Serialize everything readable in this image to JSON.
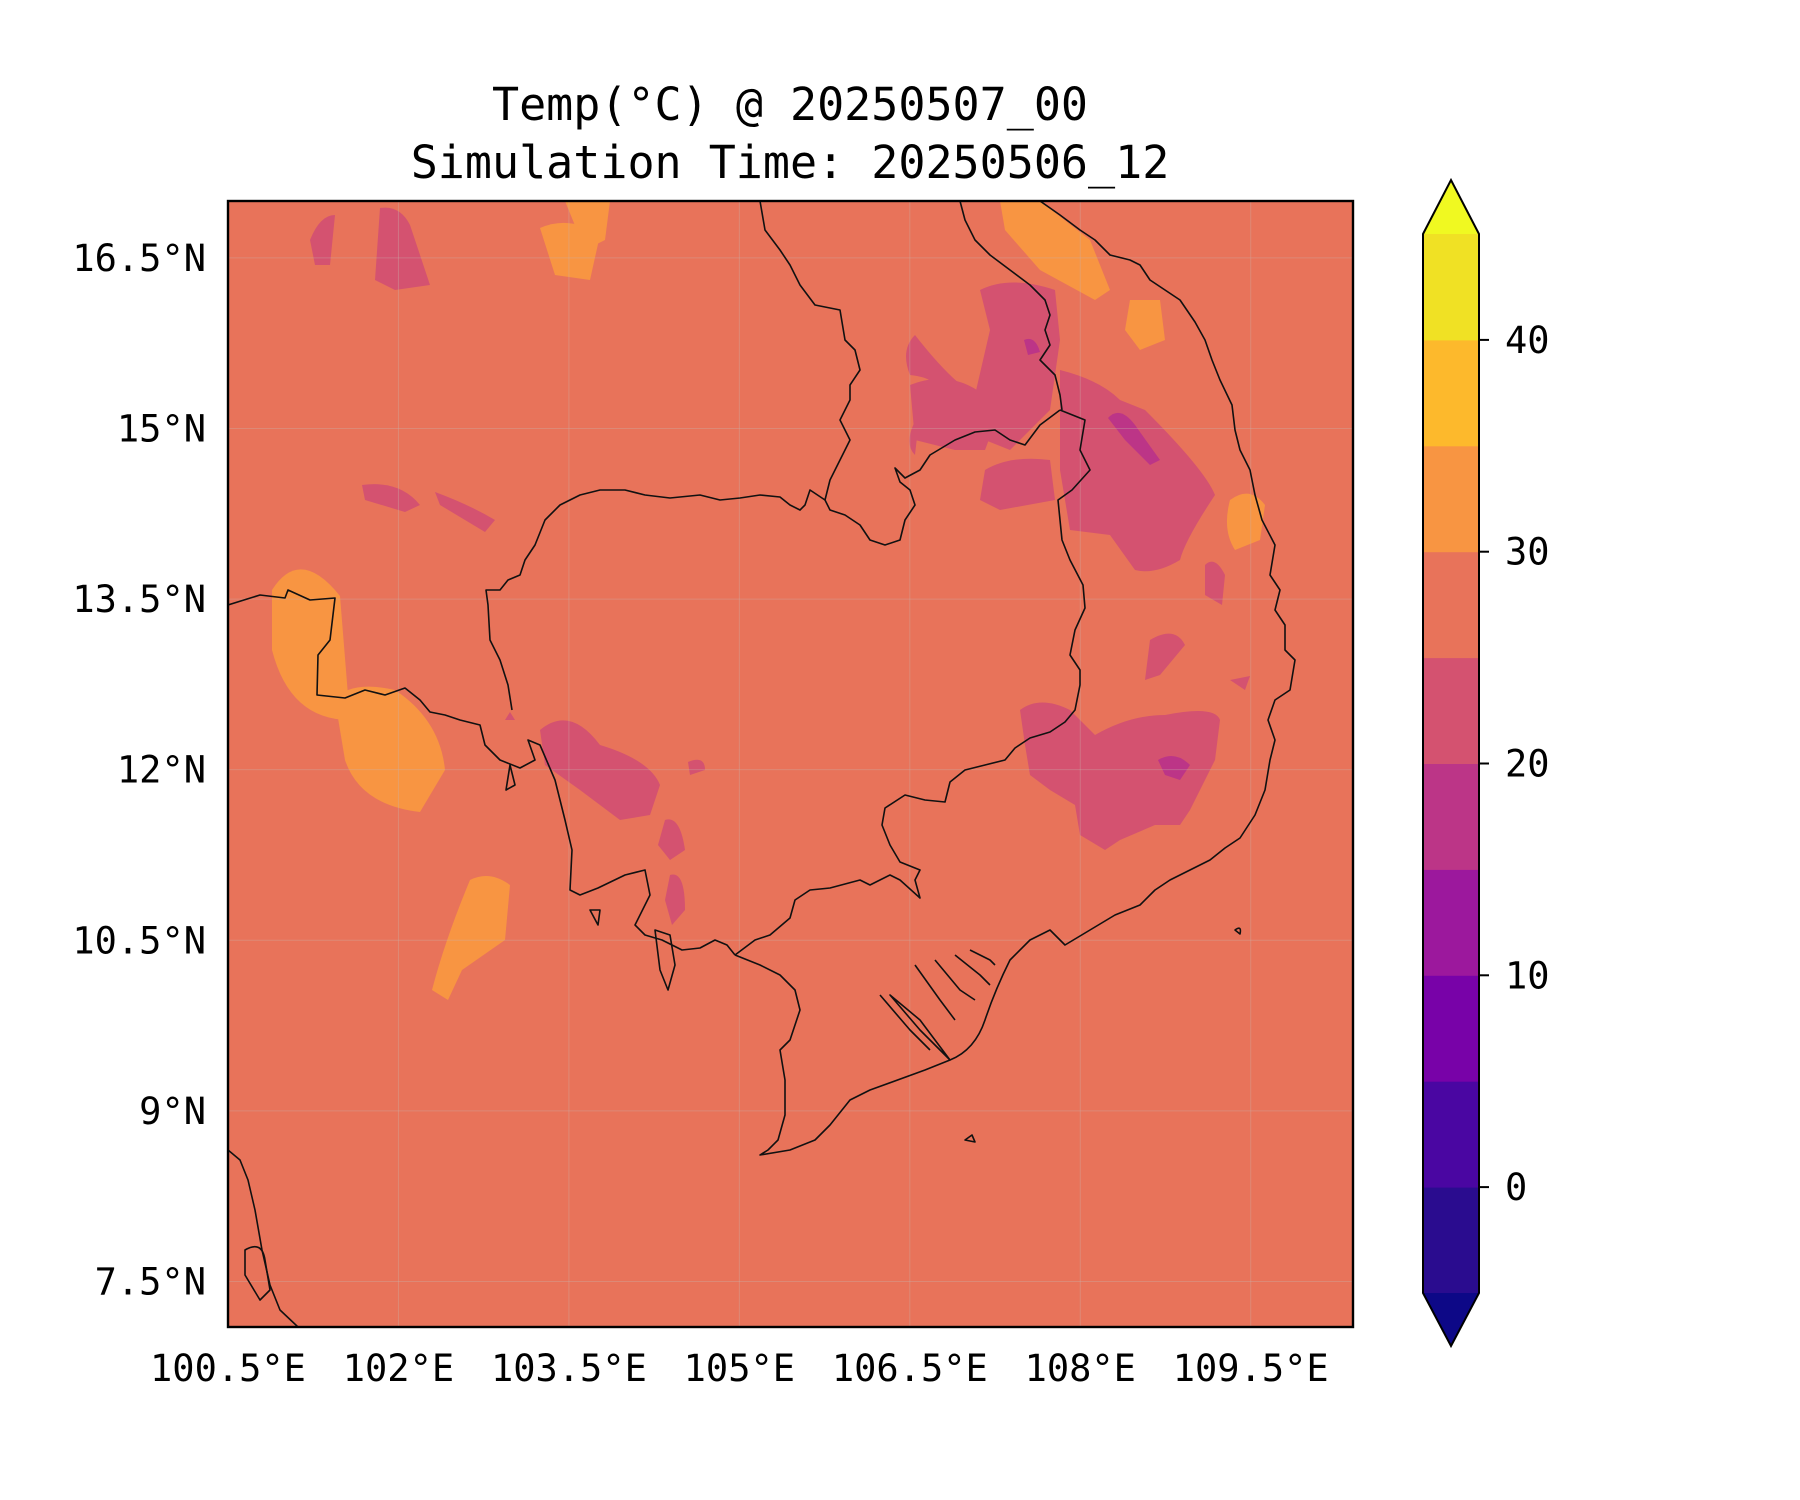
{
  "title": {
    "line1": "Temp(°C) @ 20250507_00",
    "line2": "Simulation Time: 20250506_12"
  },
  "axes": {
    "x_ticks": [
      "100.5°E",
      "102°E",
      "103.5°E",
      "105°E",
      "106.5°E",
      "108°E",
      "109.5°E"
    ],
    "y_ticks": [
      "16.5°N",
      "15°N",
      "13.5°N",
      "12°N",
      "10.5°N",
      "9°N",
      "7.5°N"
    ],
    "x_tick_values": [
      100.5,
      102,
      103.5,
      105,
      106.5,
      108,
      109.5
    ],
    "y_tick_values": [
      16.5,
      15,
      13.5,
      12,
      10.5,
      9,
      7.5
    ],
    "xlim": [
      100.5,
      110.4
    ],
    "ylim": [
      7.1,
      17.0
    ]
  },
  "colorbar": {
    "tick_labels": [
      "0",
      "10",
      "20",
      "30",
      "40"
    ],
    "tick_values": [
      0,
      10,
      20,
      30,
      40
    ],
    "levels": [
      -5,
      0,
      5,
      10,
      15,
      20,
      25,
      30,
      35,
      40,
      45
    ],
    "colors": [
      "#2a0c8f",
      "#4a06a2",
      "#7802a8",
      "#9c189d",
      "#bc3587",
      "#d45270",
      "#e8735a",
      "#f89542",
      "#fdb92c",
      "#f0e124"
    ],
    "under_color": "#0d0887",
    "over_color": "#f0f921",
    "extend": "both"
  },
  "map": {
    "background_color": "#e8735a",
    "warm_patch_color": "#f89542",
    "hot_patch_color": "#fdb92c",
    "cool_patch_color": "#d45270",
    "cooler_patch_color": "#bc3587"
  }
}
